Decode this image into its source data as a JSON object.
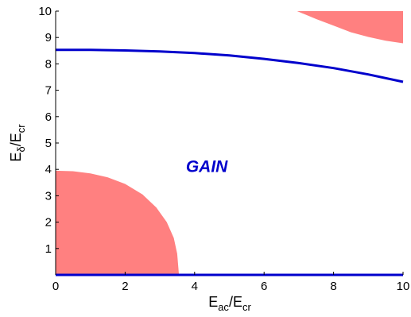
{
  "chart_data": {
    "type": "area",
    "title": "",
    "xlabel": {
      "main": "E",
      "sub": "ac",
      "sep": "/E",
      "sub2": "cr"
    },
    "ylabel": {
      "main": "E",
      "sub": "δ",
      "sep": "/E",
      "sub2": "cr"
    },
    "xlim": [
      0,
      10
    ],
    "ylim": [
      0,
      10
    ],
    "xticks": [
      0,
      2,
      4,
      6,
      8,
      10
    ],
    "yticks": [
      1,
      2,
      3,
      4,
      5,
      6,
      7,
      8,
      9,
      10
    ],
    "grid": false,
    "colors": {
      "region": "#ff8080",
      "curve": "#0000cc",
      "annotation": "#0000cc",
      "axis": "#000000"
    },
    "regions": [
      {
        "name": "lower-left loss region",
        "points": [
          [
            0,
            3.95
          ],
          [
            0.5,
            3.93
          ],
          [
            1.0,
            3.85
          ],
          [
            1.5,
            3.7
          ],
          [
            2.0,
            3.45
          ],
          [
            2.5,
            3.05
          ],
          [
            2.9,
            2.55
          ],
          [
            3.2,
            2.0
          ],
          [
            3.4,
            1.4
          ],
          [
            3.5,
            0.8
          ],
          [
            3.55,
            0.0
          ],
          [
            0,
            0.0
          ]
        ]
      },
      {
        "name": "upper-right loss region",
        "points": [
          [
            6.95,
            10.0
          ],
          [
            7.5,
            9.7
          ],
          [
            8.0,
            9.45
          ],
          [
            8.5,
            9.2
          ],
          [
            9.0,
            9.02
          ],
          [
            9.5,
            8.88
          ],
          [
            10.0,
            8.78
          ],
          [
            10.0,
            10.0
          ]
        ]
      }
    ],
    "series": [
      {
        "points": [
          [
            0,
            8.53
          ],
          [
            1,
            8.53
          ],
          [
            2,
            8.51
          ],
          [
            3,
            8.47
          ],
          [
            4,
            8.41
          ],
          [
            5,
            8.32
          ],
          [
            6,
            8.19
          ],
          [
            7,
            8.03
          ],
          [
            8,
            7.84
          ],
          [
            9,
            7.6
          ],
          [
            10,
            7.32
          ]
        ]
      },
      {
        "points": [
          [
            0,
            0.0
          ],
          [
            10,
            0.0
          ]
        ]
      }
    ],
    "annotations": [
      {
        "text": "GAIN",
        "x": 4.35,
        "y": 3.9
      }
    ]
  }
}
